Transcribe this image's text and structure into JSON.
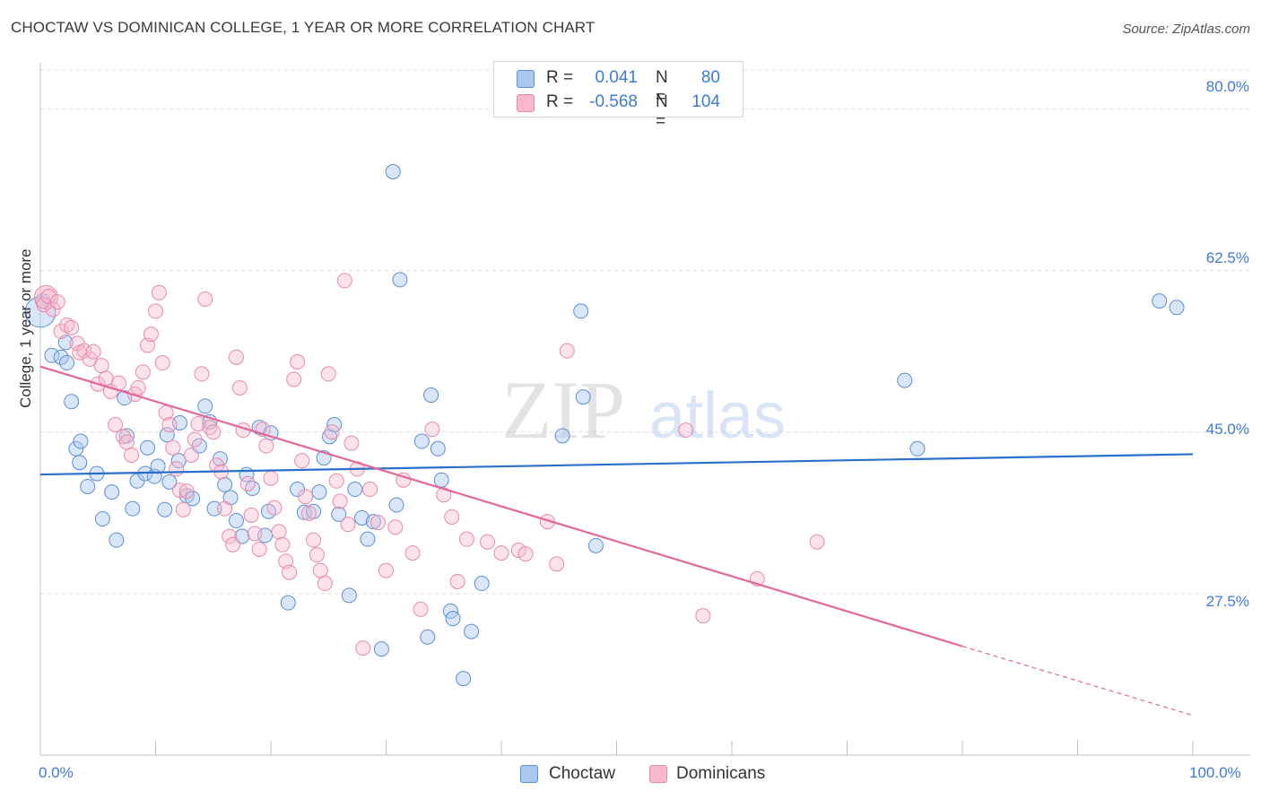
{
  "title": "CHOCTAW VS DOMINICAN COLLEGE, 1 YEAR OR MORE CORRELATION CHART",
  "source": "Source: ZipAtlas.com",
  "watermark": {
    "zip": "ZIP",
    "atlas": "atlas"
  },
  "legend": {
    "rows": [
      {
        "r_label": "R =",
        "r_value": "0.041",
        "n_label": "N =",
        "n_value": "80"
      },
      {
        "r_label": "R =",
        "r_value": "-0.568",
        "n_label": "N =",
        "n_value": "104"
      }
    ]
  },
  "colors": {
    "choctaw_fill": "#a9c8f0",
    "choctaw_stroke": "#5b8fd6",
    "choctaw_line": "#2b6fcc",
    "dominican_fill": "#f7b8cc",
    "dominican_stroke": "#e98aa9",
    "dominican_line": "#e4679a",
    "grid": "#dddddd",
    "tick_label": "#3d7bd6"
  },
  "chart_data": {
    "type": "scatter",
    "title": "CHOCTAW VS DOMINICAN COLLEGE, 1 YEAR OR MORE CORRELATION CHART",
    "xlabel": "",
    "ylabel": "College, 1 year or more",
    "xlim": [
      0,
      100
    ],
    "ylim": [
      10,
      85
    ],
    "x_tick_labels": [
      "0.0%",
      "100.0%"
    ],
    "y_ticks": [
      27.5,
      45.0,
      62.5,
      80.0
    ],
    "y_tick_labels": [
      "27.5%",
      "45.0%",
      "62.5%",
      "80.0%"
    ],
    "grid": "horizontal dashed",
    "legend_position": "top-center",
    "series": [
      {
        "name": "Choctaw",
        "r": 0.041,
        "n": 80,
        "trend": {
          "x": [
            0,
            100
          ],
          "y": [
            40.4,
            42.6
          ]
        },
        "points": [
          [
            0.2,
            59.2
          ],
          [
            1.0,
            53.3
          ],
          [
            1.8,
            53.1
          ],
          [
            2.2,
            54.7
          ],
          [
            2.3,
            52.5
          ],
          [
            2.7,
            48.3
          ],
          [
            3.1,
            43.2
          ],
          [
            3.4,
            41.7
          ],
          [
            3.5,
            44.0
          ],
          [
            4.1,
            39.1
          ],
          [
            4.9,
            40.5
          ],
          [
            5.4,
            35.6
          ],
          [
            6.2,
            38.5
          ],
          [
            6.6,
            33.3
          ],
          [
            7.3,
            48.7
          ],
          [
            7.5,
            44.6
          ],
          [
            8.0,
            36.7
          ],
          [
            8.4,
            39.7
          ],
          [
            9.1,
            40.5
          ],
          [
            9.3,
            43.3
          ],
          [
            9.9,
            40.2
          ],
          [
            10.2,
            41.3
          ],
          [
            10.8,
            36.6
          ],
          [
            11.0,
            44.7
          ],
          [
            11.2,
            39.6
          ],
          [
            12.0,
            41.9
          ],
          [
            12.1,
            46.0
          ],
          [
            12.7,
            38.1
          ],
          [
            13.2,
            37.8
          ],
          [
            13.8,
            43.5
          ],
          [
            14.3,
            47.8
          ],
          [
            14.7,
            46.1
          ],
          [
            15.1,
            36.7
          ],
          [
            15.6,
            42.1
          ],
          [
            16.0,
            39.3
          ],
          [
            16.5,
            37.9
          ],
          [
            17.0,
            35.4
          ],
          [
            17.5,
            33.7
          ],
          [
            17.9,
            40.4
          ],
          [
            18.4,
            38.9
          ],
          [
            19.0,
            45.5
          ],
          [
            19.5,
            33.8
          ],
          [
            19.8,
            36.4
          ],
          [
            20.0,
            44.9
          ],
          [
            21.5,
            26.5
          ],
          [
            22.3,
            38.8
          ],
          [
            22.9,
            36.3
          ],
          [
            23.7,
            36.4
          ],
          [
            24.2,
            38.5
          ],
          [
            24.6,
            42.2
          ],
          [
            25.1,
            44.5
          ],
          [
            25.5,
            45.8
          ],
          [
            25.9,
            36.1
          ],
          [
            26.8,
            27.3
          ],
          [
            27.3,
            38.8
          ],
          [
            27.9,
            35.7
          ],
          [
            28.4,
            33.4
          ],
          [
            28.9,
            35.3
          ],
          [
            29.6,
            21.5
          ],
          [
            30.6,
            73.2
          ],
          [
            30.9,
            37.1
          ],
          [
            31.2,
            61.5
          ],
          [
            33.1,
            44.0
          ],
          [
            33.6,
            22.8
          ],
          [
            33.9,
            49.0
          ],
          [
            34.5,
            43.2
          ],
          [
            34.8,
            39.8
          ],
          [
            35.6,
            25.6
          ],
          [
            35.8,
            24.8
          ],
          [
            36.7,
            18.3
          ],
          [
            37.4,
            23.4
          ],
          [
            38.3,
            28.6
          ],
          [
            45.3,
            44.6
          ],
          [
            46.9,
            58.1
          ],
          [
            47.1,
            48.8
          ],
          [
            48.2,
            32.7
          ],
          [
            75.0,
            50.6
          ],
          [
            76.1,
            43.2
          ],
          [
            97.1,
            59.2
          ],
          [
            98.6,
            58.5
          ]
        ]
      },
      {
        "name": "Dominicans",
        "r": -0.568,
        "n": 104,
        "trend": {
          "x": [
            0,
            80
          ],
          "y": [
            52.1,
            21.8
          ]
        },
        "trend_extension": {
          "x": [
            80,
            100
          ],
          "y": [
            21.8,
            14.3
          ]
        },
        "points": [
          [
            0.3,
            58.8
          ],
          [
            0.7,
            59.7
          ],
          [
            1.1,
            58.3
          ],
          [
            1.5,
            59.1
          ],
          [
            1.8,
            55.9
          ],
          [
            2.3,
            56.6
          ],
          [
            2.7,
            56.3
          ],
          [
            3.2,
            54.6
          ],
          [
            3.4,
            53.6
          ],
          [
            3.8,
            53.8
          ],
          [
            4.3,
            52.9
          ],
          [
            4.6,
            53.7
          ],
          [
            5.0,
            50.2
          ],
          [
            5.3,
            52.2
          ],
          [
            5.7,
            50.8
          ],
          [
            6.1,
            49.4
          ],
          [
            6.5,
            45.8
          ],
          [
            6.8,
            50.3
          ],
          [
            7.2,
            44.5
          ],
          [
            7.5,
            43.9
          ],
          [
            7.9,
            42.5
          ],
          [
            8.2,
            49.1
          ],
          [
            8.5,
            49.8
          ],
          [
            8.9,
            51.5
          ],
          [
            9.3,
            54.4
          ],
          [
            9.6,
            55.6
          ],
          [
            10.0,
            58.1
          ],
          [
            10.3,
            60.1
          ],
          [
            10.6,
            52.5
          ],
          [
            10.9,
            47.1
          ],
          [
            11.2,
            45.8
          ],
          [
            11.5,
            43.3
          ],
          [
            11.8,
            41.0
          ],
          [
            12.1,
            38.7
          ],
          [
            12.4,
            36.6
          ],
          [
            12.7,
            38.6
          ],
          [
            13.1,
            42.5
          ],
          [
            13.4,
            44.2
          ],
          [
            13.7,
            45.9
          ],
          [
            14.0,
            51.3
          ],
          [
            14.3,
            59.4
          ],
          [
            14.7,
            45.5
          ],
          [
            15.0,
            45.0
          ],
          [
            15.3,
            41.4
          ],
          [
            15.7,
            40.7
          ],
          [
            16.0,
            36.7
          ],
          [
            16.4,
            33.7
          ],
          [
            16.7,
            32.8
          ],
          [
            17.0,
            53.1
          ],
          [
            17.3,
            49.8
          ],
          [
            17.6,
            45.2
          ],
          [
            18.0,
            39.4
          ],
          [
            18.3,
            36.0
          ],
          [
            18.6,
            34.0
          ],
          [
            19.0,
            32.3
          ],
          [
            19.3,
            45.3
          ],
          [
            19.6,
            43.5
          ],
          [
            20.0,
            40.0
          ],
          [
            20.3,
            36.8
          ],
          [
            20.7,
            34.2
          ],
          [
            21.0,
            32.8
          ],
          [
            21.3,
            31.0
          ],
          [
            21.6,
            29.8
          ],
          [
            22.0,
            50.7
          ],
          [
            22.3,
            52.6
          ],
          [
            22.7,
            41.9
          ],
          [
            23.0,
            38.0
          ],
          [
            23.3,
            36.2
          ],
          [
            23.7,
            33.3
          ],
          [
            24.0,
            31.7
          ],
          [
            24.3,
            30.0
          ],
          [
            24.7,
            28.6
          ],
          [
            25.0,
            51.3
          ],
          [
            25.3,
            45.0
          ],
          [
            25.7,
            39.7
          ],
          [
            26.0,
            37.5
          ],
          [
            26.4,
            61.4
          ],
          [
            26.7,
            35.0
          ],
          [
            27.0,
            43.8
          ],
          [
            27.5,
            41.0
          ],
          [
            28.0,
            21.6
          ],
          [
            28.6,
            38.8
          ],
          [
            29.3,
            35.2
          ],
          [
            30.0,
            30.0
          ],
          [
            30.8,
            34.7
          ],
          [
            31.5,
            39.8
          ],
          [
            32.3,
            31.9
          ],
          [
            33.0,
            25.8
          ],
          [
            34.0,
            45.3
          ],
          [
            35.0,
            38.2
          ],
          [
            35.7,
            35.8
          ],
          [
            36.2,
            28.8
          ],
          [
            37.0,
            33.4
          ],
          [
            38.8,
            33.1
          ],
          [
            40.0,
            31.9
          ],
          [
            41.5,
            32.2
          ],
          [
            42.1,
            31.8
          ],
          [
            44.0,
            35.3
          ],
          [
            44.8,
            30.7
          ],
          [
            45.7,
            53.8
          ],
          [
            56.0,
            45.2
          ],
          [
            57.5,
            25.1
          ],
          [
            62.2,
            29.1
          ],
          [
            67.4,
            33.1
          ]
        ]
      }
    ]
  },
  "bottom_legend": [
    {
      "label": "Choctaw"
    },
    {
      "label": "Dominicans"
    }
  ]
}
